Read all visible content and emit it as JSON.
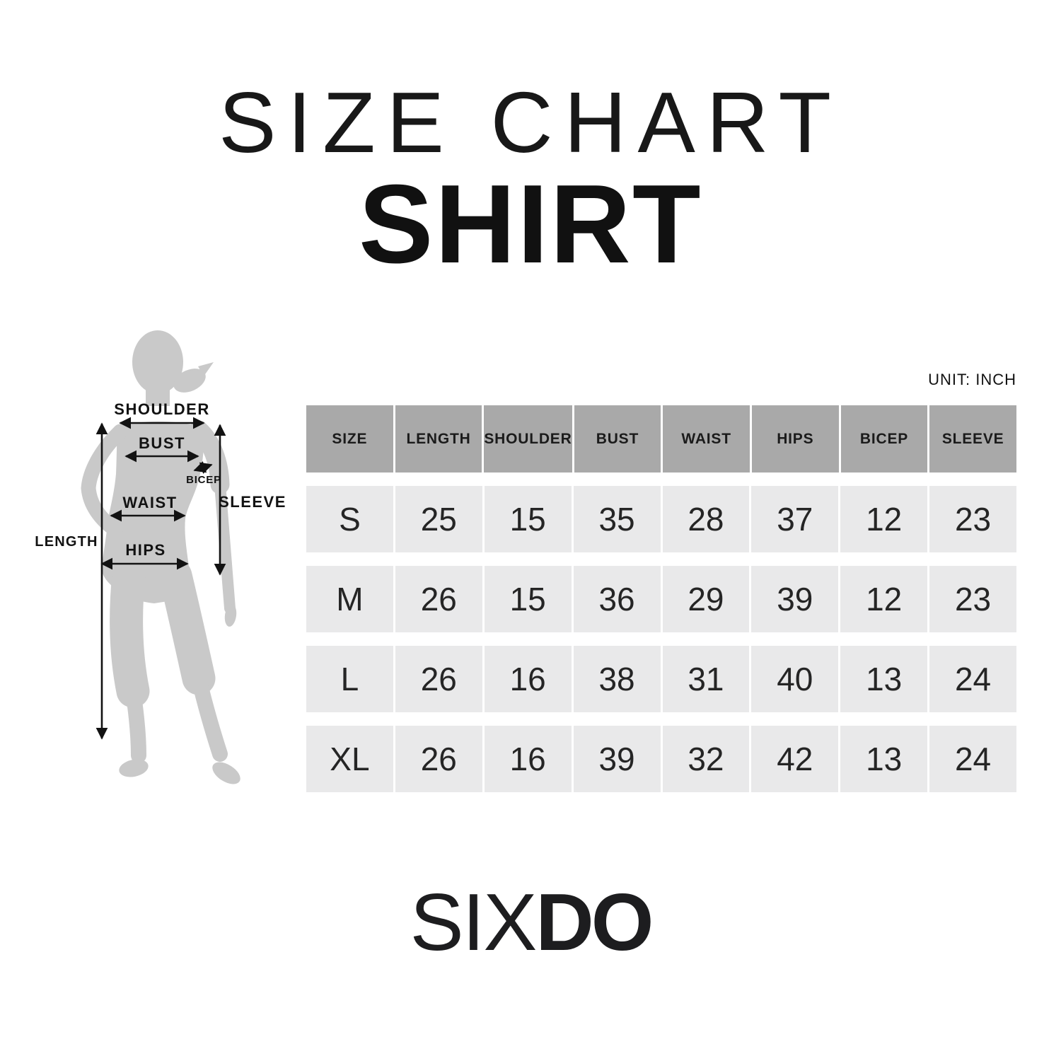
{
  "header": {
    "title": "SIZE CHART",
    "subtitle": "SHIRT"
  },
  "table": {
    "unit_label": "UNIT: INCH"
  },
  "figure": {
    "labels": {
      "shoulder": "SHOULDER",
      "bust": "BUST",
      "bicep": "BICEP",
      "waist": "WAIST",
      "sleeve": "SLEEVE",
      "length": "LENGTH",
      "hips": "HIPS"
    }
  },
  "brand": {
    "name": "SIXDO",
    "thin": "SIX",
    "bold": "DO"
  },
  "colors": {
    "table_header_bg": "#a9a9a9",
    "table_row_bg": "#e9e9ea",
    "silhouette_gray": "#c9c9c9",
    "text_black": "#1a1a1a",
    "background": "#ffffff"
  },
  "chart_data": {
    "type": "table",
    "title": "SIZE CHART",
    "subtitle": "SHIRT",
    "unit": "INCH",
    "columns": [
      "SIZE",
      "LENGTH",
      "SHOULDER",
      "BUST",
      "WAIST",
      "HIPS",
      "BICEP",
      "SLEEVE"
    ],
    "rows": [
      [
        "S",
        25,
        15,
        35,
        28,
        37,
        12,
        23
      ],
      [
        "M",
        26,
        15,
        36,
        29,
        39,
        12,
        23
      ],
      [
        "L",
        26,
        16,
        38,
        31,
        40,
        13,
        24
      ],
      [
        "XL",
        26,
        16,
        39,
        32,
        42,
        13,
        24
      ]
    ]
  }
}
